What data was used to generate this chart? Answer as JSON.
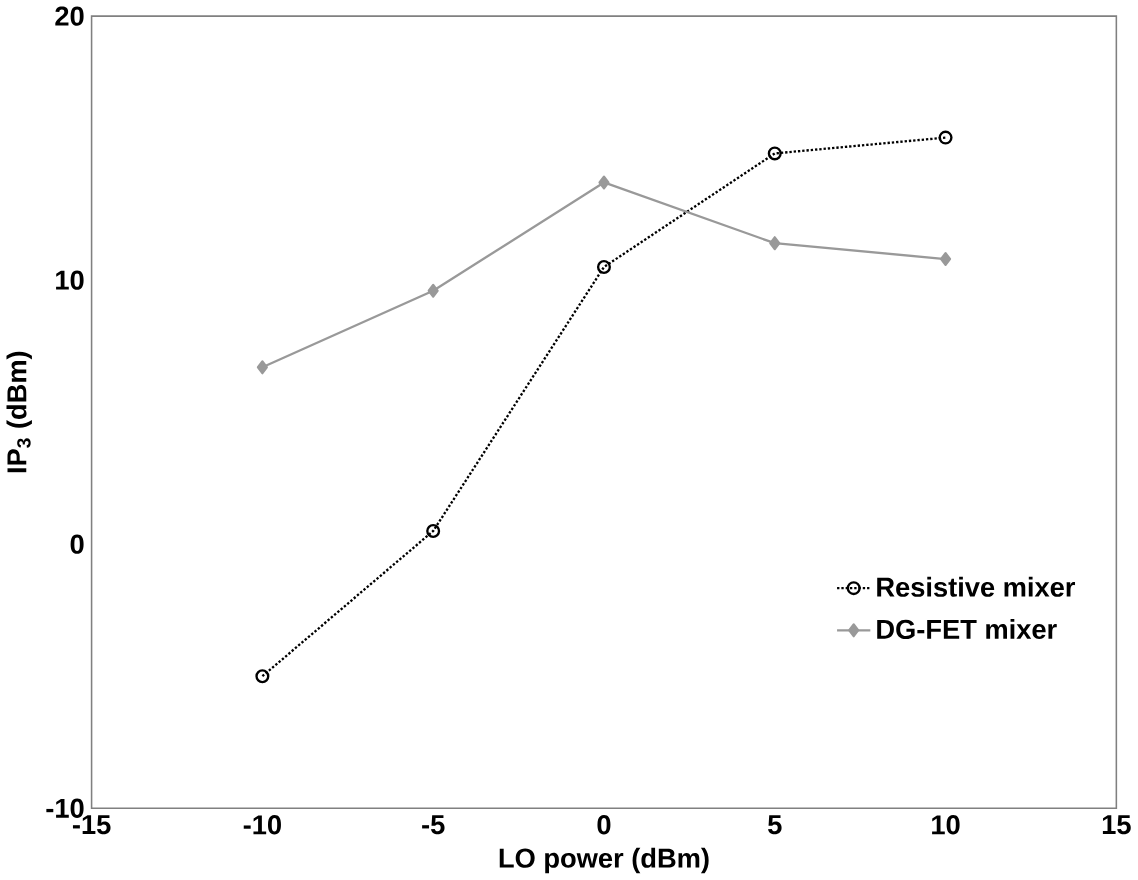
{
  "chart_data": {
    "type": "line",
    "xlabel": "LO power (dBm)",
    "ylabel": "IP$_{3}$ (dBm)",
    "x": [
      -10,
      -5,
      0,
      5,
      10
    ],
    "series": [
      {
        "name": "Resistive mixer",
        "color": "#000000",
        "marker": "circle",
        "line_style": "dotted",
        "values": [
          -5.0,
          0.5,
          10.5,
          14.8,
          15.4
        ]
      },
      {
        "name": "DG-FET mixer",
        "color": "#999999",
        "marker": "diamond",
        "line_style": "solid",
        "values": [
          6.7,
          9.6,
          13.7,
          11.4,
          10.8
        ]
      }
    ],
    "xlim": [
      -15,
      15
    ],
    "ylim": [
      -10,
      20
    ],
    "xticks": [
      -15,
      -10,
      -5,
      0,
      5,
      10,
      15
    ],
    "yticks": [
      -10,
      0,
      10,
      20
    ],
    "grid": false,
    "legend": "bottom right"
  }
}
